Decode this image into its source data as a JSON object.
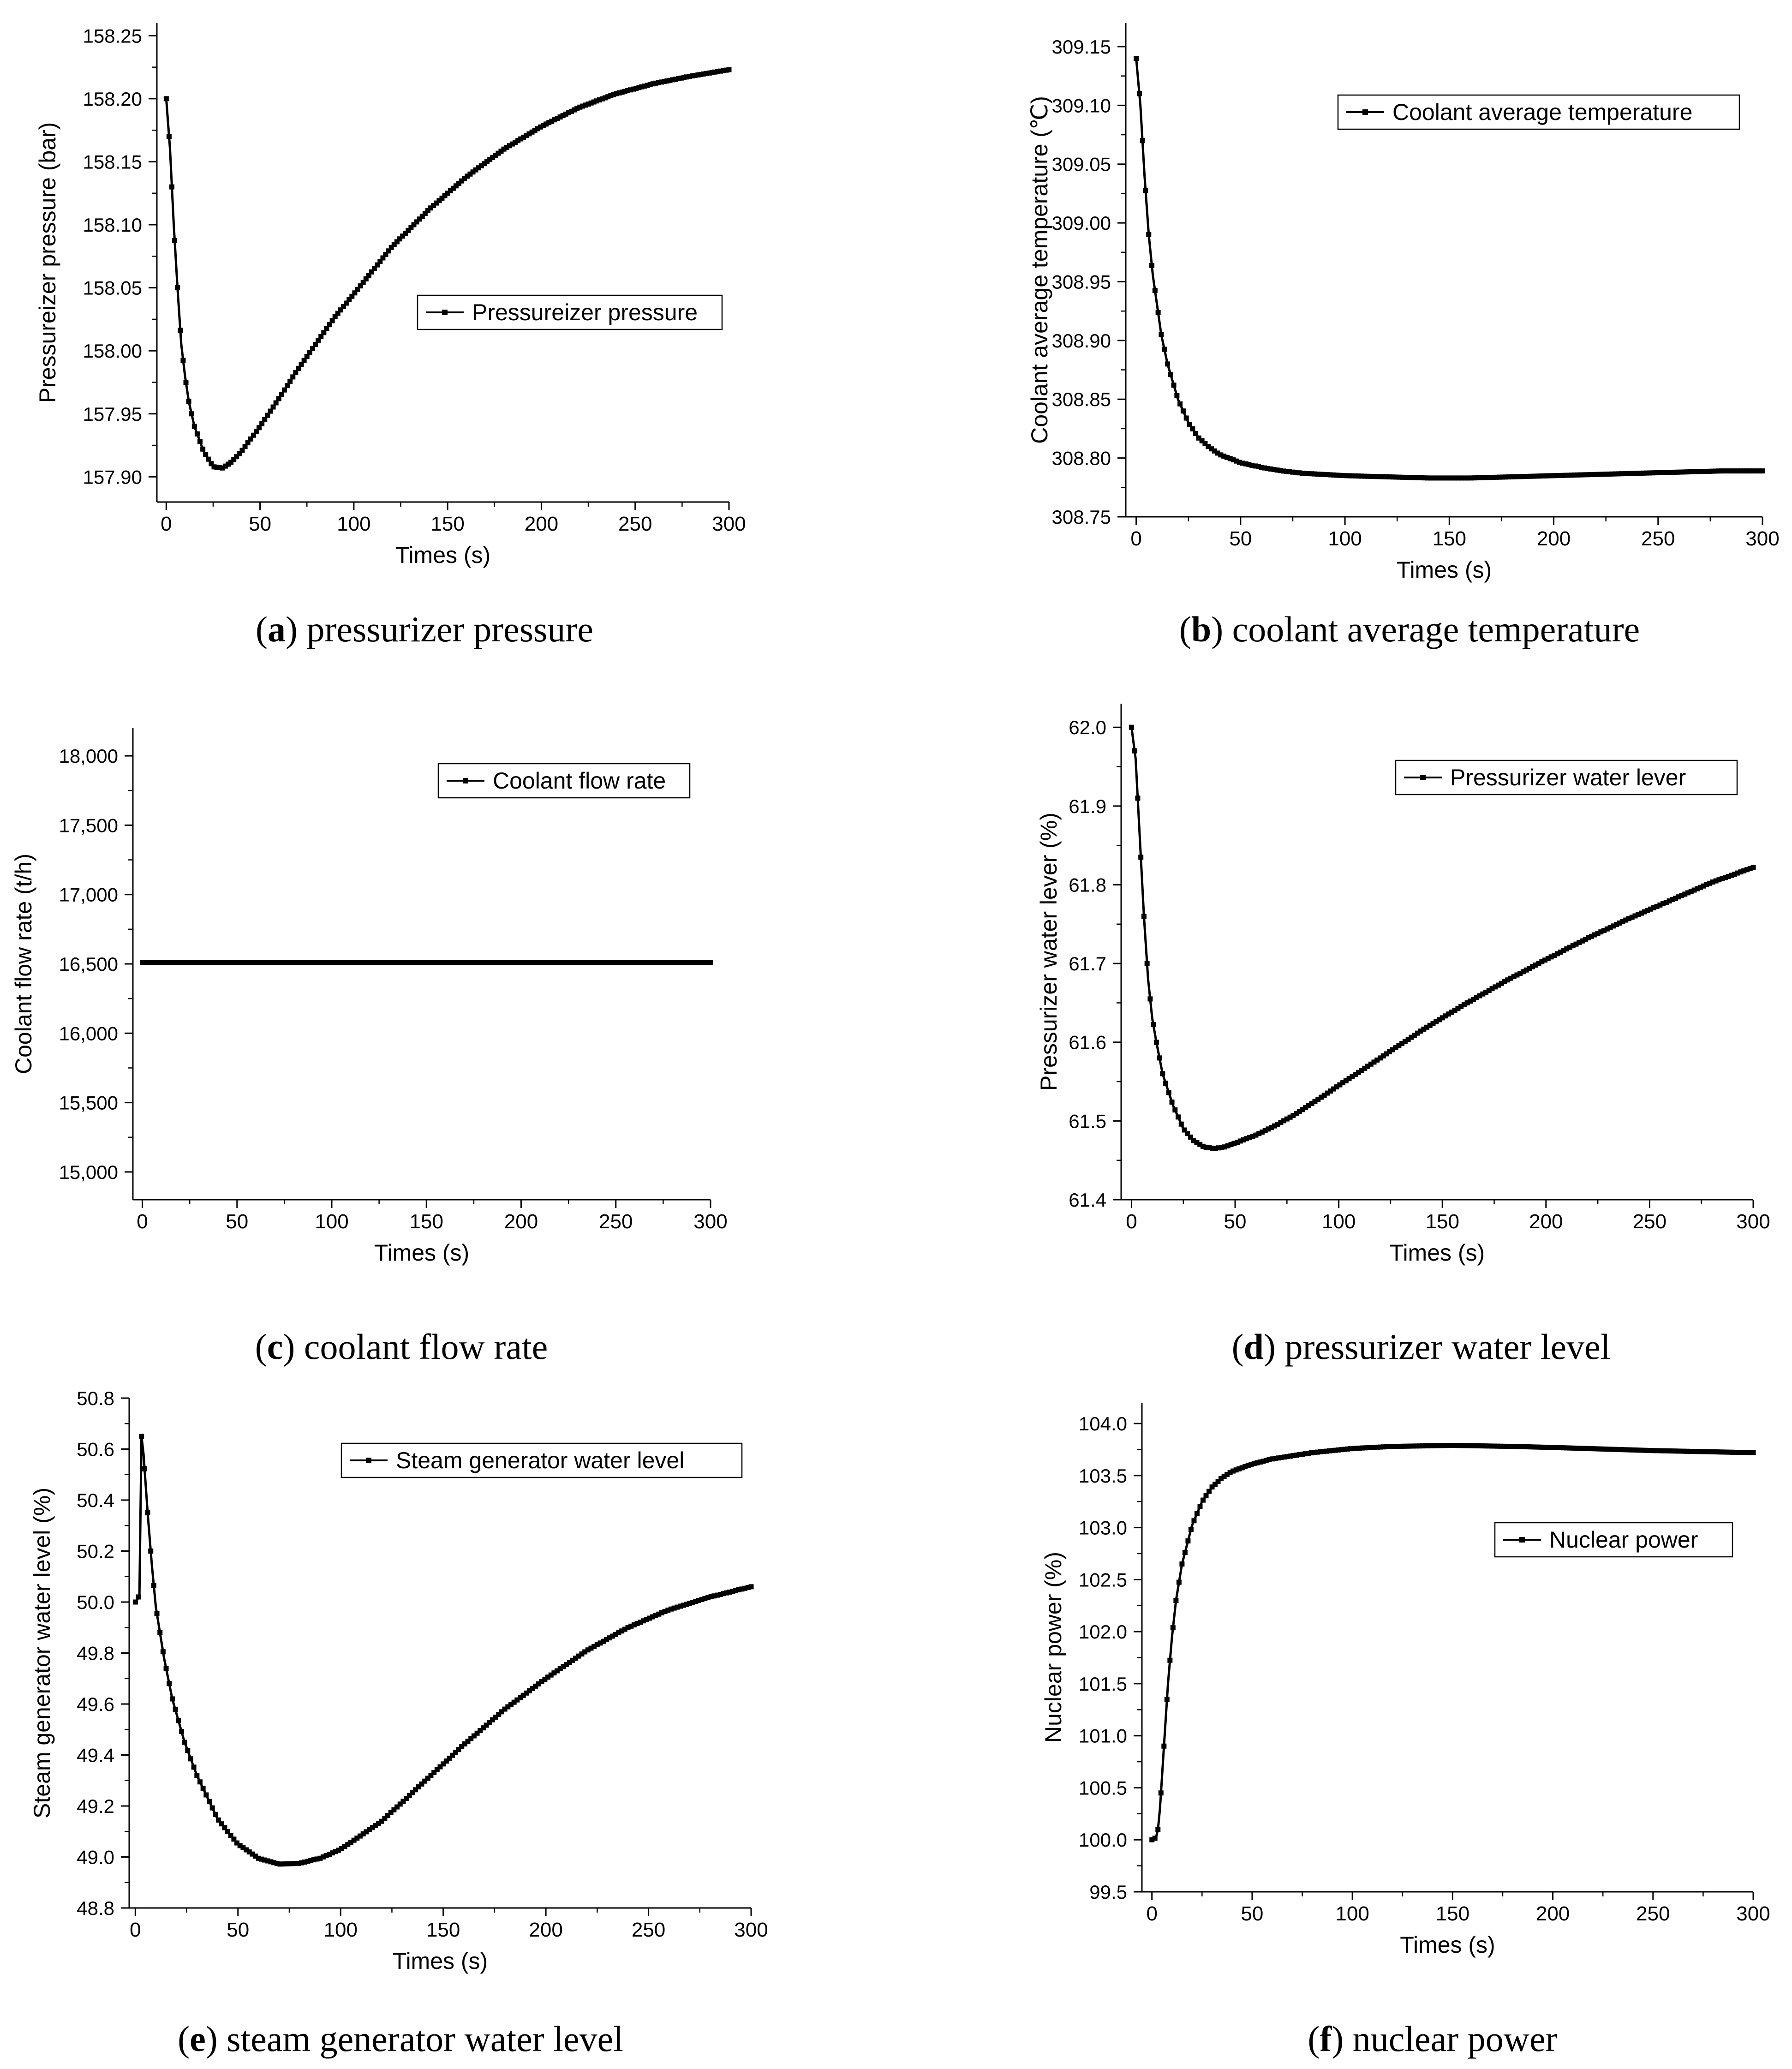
{
  "figure": {
    "panels_order": [
      "a",
      "b",
      "c",
      "d",
      "e",
      "f"
    ]
  },
  "chart_data": [
    {
      "id": "a",
      "type": "line",
      "caption_letter": "a",
      "caption_text": "pressurizer pressure",
      "title": "",
      "xlabel": "Times (s)",
      "ylabel": "Pressureizer pressure (bar)",
      "xlim": [
        -5,
        300
      ],
      "ylim": [
        157.88,
        158.26
      ],
      "xticks": [
        0,
        50,
        100,
        150,
        200,
        250,
        300
      ],
      "xtick_labels": [
        "0",
        "50",
        "100",
        "150",
        "200",
        "250",
        "300"
      ],
      "yticks": [
        157.9,
        157.95,
        158.0,
        158.05,
        158.1,
        158.15,
        158.2,
        158.25
      ],
      "ytick_labels": [
        "157.90",
        "157.95",
        "158.00",
        "158.05",
        "158.10",
        "158.15",
        "158.20",
        "158.25"
      ],
      "legend": {
        "label": "Pressureizer pressure",
        "position": "center-right"
      },
      "series": [
        {
          "name": "Pressureizer pressure",
          "x": [
            0,
            2,
            4,
            6,
            8,
            10,
            12,
            15,
            20,
            25,
            30,
            35,
            40,
            50,
            60,
            70,
            80,
            90,
            100,
            120,
            140,
            160,
            180,
            200,
            220,
            240,
            260,
            280,
            300
          ],
          "y": [
            158.2,
            158.16,
            158.1,
            158.05,
            158.005,
            157.98,
            157.96,
            157.94,
            157.92,
            157.908,
            157.907,
            157.912,
            157.92,
            157.94,
            157.962,
            157.985,
            158.006,
            158.027,
            158.045,
            158.082,
            158.112,
            158.138,
            158.16,
            158.178,
            158.193,
            158.204,
            158.212,
            158.218,
            158.223
          ]
        }
      ]
    },
    {
      "id": "b",
      "type": "line",
      "caption_letter": "b",
      "caption_text": "coolant average temperature",
      "title": "",
      "xlabel": "Times (s)",
      "ylabel": "Coolant average temperature (℃)",
      "xlim": [
        -5,
        300
      ],
      "ylim": [
        308.75,
        309.17
      ],
      "xticks": [
        0,
        50,
        100,
        150,
        200,
        250,
        300
      ],
      "xtick_labels": [
        "0",
        "50",
        "100",
        "150",
        "200",
        "250",
        "300"
      ],
      "yticks": [
        308.75,
        308.8,
        308.85,
        308.9,
        308.95,
        309.0,
        309.05,
        309.1,
        309.15
      ],
      "ytick_labels": [
        "308.75",
        "308.80",
        "308.85",
        "308.90",
        "308.95",
        "309.00",
        "309.05",
        "309.10",
        "309.15"
      ],
      "legend": {
        "label": "Coolant average temperature",
        "position": "top-right"
      },
      "series": [
        {
          "name": "Coolant average temperature",
          "x": [
            0,
            2,
            4,
            6,
            8,
            10,
            12,
            15,
            20,
            25,
            30,
            35,
            40,
            50,
            60,
            70,
            80,
            100,
            120,
            140,
            160,
            180,
            200,
            220,
            240,
            260,
            280,
            300
          ],
          "y": [
            309.14,
            309.1,
            309.04,
            308.99,
            308.955,
            308.93,
            308.905,
            308.88,
            308.85,
            308.83,
            308.817,
            308.809,
            308.803,
            308.796,
            308.792,
            308.789,
            308.787,
            308.785,
            308.784,
            308.783,
            308.783,
            308.784,
            308.785,
            308.786,
            308.787,
            308.788,
            308.789,
            308.789
          ]
        }
      ]
    },
    {
      "id": "c",
      "type": "line",
      "caption_letter": "c",
      "caption_text": "coolant flow rate",
      "title": "",
      "xlabel": "Times (s)",
      "ylabel": "Coolant flow rate (t/h)",
      "xlim": [
        -5,
        300
      ],
      "ylim": [
        14800,
        18200
      ],
      "xticks": [
        0,
        50,
        100,
        150,
        200,
        250,
        300
      ],
      "xtick_labels": [
        "0",
        "50",
        "100",
        "150",
        "200",
        "250",
        "300"
      ],
      "yticks": [
        15000,
        15500,
        16000,
        16500,
        17000,
        17500,
        18000
      ],
      "ytick_labels": [
        "15,000",
        "15,500",
        "16,000",
        "16,500",
        "17,000",
        "17,500",
        "18,000"
      ],
      "legend": {
        "label": "Coolant flow rate",
        "position": "top-right"
      },
      "series": [
        {
          "name": "Coolant flow rate",
          "x": [
            0,
            300
          ],
          "y": [
            16510,
            16510
          ]
        }
      ]
    },
    {
      "id": "d",
      "type": "line",
      "caption_letter": "d",
      "caption_text": "pressurizer water level",
      "title": "",
      "xlabel": "Times (s)",
      "ylabel": "Pressurizer water lever (%)",
      "xlim": [
        -5,
        300
      ],
      "ylim": [
        61.4,
        62.03
      ],
      "xticks": [
        0,
        50,
        100,
        150,
        200,
        250,
        300
      ],
      "xtick_labels": [
        "0",
        "50",
        "100",
        "150",
        "200",
        "250",
        "300"
      ],
      "yticks": [
        61.4,
        61.5,
        61.6,
        61.7,
        61.8,
        61.9,
        62.0
      ],
      "ytick_labels": [
        "61.4",
        "61.5",
        "61.6",
        "61.7",
        "61.8",
        "61.9",
        "62.0"
      ],
      "legend": {
        "label": "Pressurizer water lever",
        "position": "top-right"
      },
      "series": [
        {
          "name": "Pressurizer water lever",
          "x": [
            0,
            2,
            4,
            6,
            8,
            10,
            12,
            15,
            20,
            25,
            30,
            35,
            40,
            45,
            50,
            60,
            70,
            80,
            100,
            120,
            140,
            160,
            180,
            200,
            220,
            240,
            260,
            280,
            300
          ],
          "y": [
            62.0,
            61.96,
            61.86,
            61.76,
            61.68,
            61.63,
            61.6,
            61.56,
            61.52,
            61.49,
            61.475,
            61.467,
            61.465,
            61.467,
            61.472,
            61.482,
            61.495,
            61.51,
            61.545,
            61.58,
            61.615,
            61.647,
            61.677,
            61.705,
            61.732,
            61.757,
            61.78,
            61.803,
            61.822
          ]
        }
      ]
    },
    {
      "id": "e",
      "type": "line",
      "caption_letter": "e",
      "caption_text": "steam generator water level",
      "title": "",
      "xlabel": "Times (s)",
      "ylabel": "Steam generator water level (%)",
      "xlim": [
        -3,
        300
      ],
      "ylim": [
        48.8,
        50.8
      ],
      "xticks": [
        0,
        50,
        100,
        150,
        200,
        250,
        300
      ],
      "xtick_labels": [
        "0",
        "50",
        "100",
        "150",
        "200",
        "250",
        "300"
      ],
      "yticks": [
        48.8,
        49.0,
        49.2,
        49.4,
        49.6,
        49.8,
        50.0,
        50.2,
        50.4,
        50.6,
        50.8
      ],
      "ytick_labels": [
        "48.8",
        "49.0",
        "49.2",
        "49.4",
        "49.6",
        "49.8",
        "50.0",
        "50.2",
        "50.4",
        "50.6",
        "50.8"
      ],
      "legend": {
        "label": "Steam generator water level",
        "position": "top-right"
      },
      "series": [
        {
          "name": "Steam generator water level",
          "x": [
            0,
            1,
            2,
            3,
            4,
            6,
            8,
            10,
            14,
            18,
            24,
            30,
            40,
            50,
            60,
            70,
            80,
            90,
            100,
            120,
            140,
            160,
            180,
            200,
            220,
            240,
            260,
            280,
            300
          ],
          "y": [
            50.0,
            50.01,
            50.03,
            50.65,
            50.58,
            50.35,
            50.15,
            49.98,
            49.78,
            49.62,
            49.45,
            49.32,
            49.15,
            49.05,
            48.995,
            48.972,
            48.975,
            48.995,
            49.03,
            49.14,
            49.29,
            49.44,
            49.58,
            49.7,
            49.81,
            49.9,
            49.97,
            50.02,
            50.06
          ]
        }
      ]
    },
    {
      "id": "f",
      "type": "line",
      "caption_letter": "f",
      "caption_text": "nuclear power",
      "title": "",
      "xlabel": "Times (s)",
      "ylabel": "Nuclear power (%)",
      "xlim": [
        -5,
        300
      ],
      "ylim": [
        99.5,
        104.2
      ],
      "xticks": [
        0,
        50,
        100,
        150,
        200,
        250,
        300
      ],
      "xtick_labels": [
        "0",
        "50",
        "100",
        "150",
        "200",
        "250",
        "300"
      ],
      "yticks": [
        99.5,
        100.0,
        100.5,
        101.0,
        101.5,
        102.0,
        102.5,
        103.0,
        103.5,
        104.0
      ],
      "ytick_labels": [
        "99.5",
        "100.0",
        "100.5",
        "101.0",
        "101.5",
        "102.0",
        "102.5",
        "103.0",
        "103.5",
        "104.0"
      ],
      "legend": {
        "label": "Nuclear power",
        "position": "center-right"
      },
      "series": [
        {
          "name": "Nuclear power",
          "x": [
            0,
            2,
            3,
            4,
            6,
            8,
            10,
            12,
            15,
            20,
            25,
            30,
            35,
            40,
            50,
            60,
            80,
            100,
            120,
            150,
            180,
            200,
            250,
            300
          ],
          "y": [
            100.0,
            100.02,
            100.1,
            100.3,
            100.9,
            101.5,
            101.95,
            102.3,
            102.65,
            103.02,
            103.25,
            103.39,
            103.48,
            103.54,
            103.61,
            103.66,
            103.72,
            103.76,
            103.78,
            103.79,
            103.78,
            103.77,
            103.74,
            103.72
          ]
        }
      ]
    }
  ]
}
